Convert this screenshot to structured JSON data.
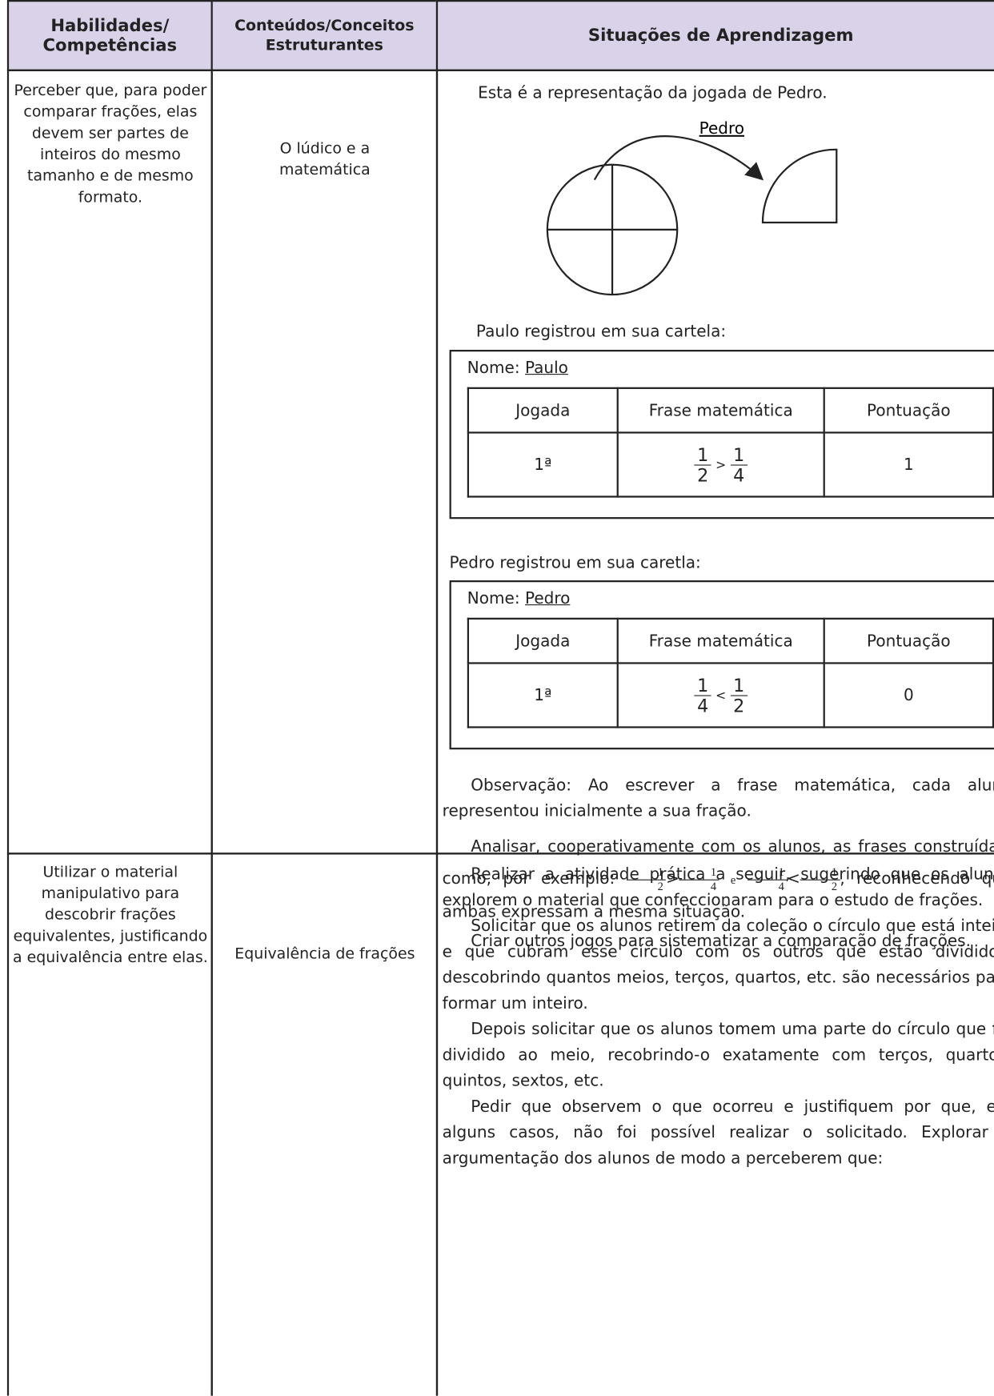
{
  "header": {
    "columns": [
      "Habilidades/ Competências",
      "Conteúdos/Conceitos Estruturantes",
      "Situações de Aprendizagem"
    ]
  },
  "rows": [
    {
      "skill": "Perceber que, para poder comparar frações, elas devem ser partes de inteiros do mesmo tamanho e de mesmo formato.",
      "content": "O lúdico e a matemática",
      "intro": "Esta é a representação da jogada de Pedro.",
      "diagram_label": "Pedro",
      "cards": [
        {
          "caption": "Paulo registrou em sua cartela:",
          "name_label": "Nome:",
          "name": "Paulo",
          "headers": [
            "Jogada",
            "Frase matemática",
            "Pontuação"
          ],
          "play": "1ª",
          "left": {
            "num": "1",
            "den": "2"
          },
          "op": ">",
          "right": {
            "num": "1",
            "den": "4"
          },
          "score": "1"
        },
        {
          "caption": "Pedro registrou em sua caretla:",
          "name_label": "Nome:",
          "name": "Pedro",
          "headers": [
            "Jogada",
            "Frase matemática",
            "Pontuação"
          ],
          "play": "1ª",
          "left": {
            "num": "1",
            "den": "4"
          },
          "op": "<",
          "right": {
            "num": "1",
            "den": "2"
          },
          "score": "0"
        }
      ],
      "observation": "Observação: Ao escrever a frase matemática, cada aluno representou inicialmente a sua fração.",
      "analysis": {
        "before": "Analisar, cooperativamente com os alunos, as frases construídas, como, por exemplo:",
        "e1": {
          "left": {
            "num": "1",
            "den": "2"
          },
          "op": ">",
          "right": {
            "num": "1",
            "den": "4"
          }
        },
        "conj": "e",
        "e2": {
          "left": {
            "num": "1",
            "den": "4"
          },
          "op": "<",
          "right": {
            "num": "1",
            "den": "2"
          }
        },
        "after": ", reconhecendo que ambas expressam a mesma situação."
      },
      "closing": "Criar outros jogos para sistematizar a comparação de frações."
    },
    {
      "skill": "Utilizar o material manipulativo para descobrir frações equivalentes, justificando a equivalência entre elas.",
      "content": "Equivalência de frações",
      "paragraphs": [
        "Realizar a atividade prática a seguir, sugerindo que os alunos explorem o material que confeccionaram para o estudo de frações.",
        "Solicitar que os alunos retirem da coleção o círculo que está inteiro e que cubram esse círculo com os outros que estão divididos, descobrindo quantos meios, terços, quartos, etc. são necessários para formar um inteiro.",
        "Depois solicitar que os alunos tomem uma parte do círculo que foi dividido ao meio, recobrindo-o exatamente com terços, quartos, quintos, sextos, etc.",
        "Pedir que observem o que ocorreu e justifiquem por que, em alguns casos, não foi possível realizar o solicitado. Explorar a argumentação dos alunos de modo a perceberem que:"
      ]
    }
  ]
}
